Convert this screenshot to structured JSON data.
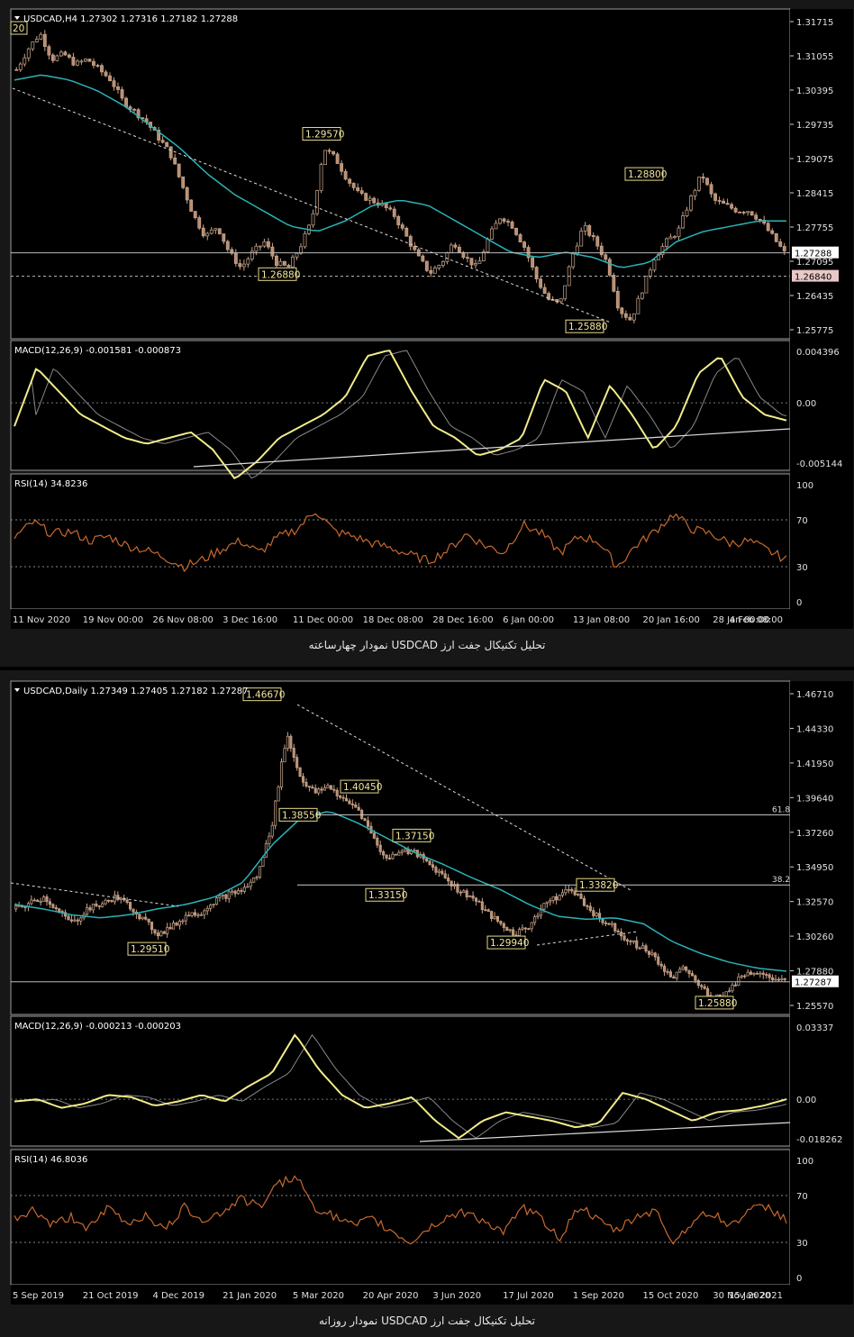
{
  "charts": [
    {
      "id": "h4",
      "caption": "تحلیل تکنیکال جفت ارز USDCAD نمودار چهارساعته",
      "price": {
        "header": "USDCAD,H4  1.27302 1.27316 1.27182 1.27288",
        "ticks": [
          "1.31715",
          "1.31055",
          "1.30395",
          "1.29735",
          "1.29075",
          "1.28415",
          "1.27755",
          "1.27095",
          "1.26435",
          "1.25775"
        ],
        "current_label": "1.27288",
        "level_label": "1.26840",
        "annotations": [
          "1.29570",
          "1.28800",
          "1.26880",
          "1.25880",
          "20"
        ]
      },
      "macd": {
        "header": "MACD(12,26,9) -0.001581 -0.000873",
        "ticks": [
          "0.004396",
          "0.00",
          "-0.005144"
        ]
      },
      "rsi": {
        "header": "RSI(14) 34.8236",
        "ticks": [
          "100",
          "70",
          "30",
          "0"
        ]
      },
      "x_labels": [
        "11 Nov 2020",
        "19 Nov 00:00",
        "26 Nov 08:00",
        "3 Dec 16:00",
        "11 Dec 00:00",
        "18 Dec 08:00",
        "28 Dec 16:00",
        "6 Jan 00:00",
        "13 Jan 08:00",
        "20 Jan 16:00",
        "28 Jan 00:00",
        "4 Feb 08:00"
      ]
    },
    {
      "id": "daily",
      "caption": "تحلیل تکنیکال جفت ارز USDCAD نمودار روزانه",
      "price": {
        "header": "USDCAD,Daily  1.27349 1.27405 1.27182 1.27287",
        "ticks": [
          "1.46710",
          "1.44330",
          "1.41950",
          "1.39640",
          "1.37260",
          "1.34950",
          "1.32570",
          "1.30260",
          "1.27880",
          "1.25570"
        ],
        "current_label": "1.27287",
        "annotations": [
          "1.46670",
          "1.38550",
          "1.40450",
          "1.37150",
          "1.33150",
          "1.29510",
          "1.29940",
          "1.33820",
          "1.25880"
        ],
        "fib_labels": [
          "61.8",
          "38.2"
        ]
      },
      "macd": {
        "header": "MACD(12,26,9) -0.000213 -0.000203",
        "ticks": [
          "0.03337",
          "0.00",
          "-0.018262"
        ]
      },
      "rsi": {
        "header": "RSI(14) 46.8036",
        "ticks": [
          "100",
          "70",
          "30",
          "0"
        ]
      },
      "x_labels": [
        "5 Sep 2019",
        "21 Oct 2019",
        "4 Dec 2019",
        "21 Jan 2020",
        "5 Mar 2020",
        "20 Apr 2020",
        "3 Jun 2020",
        "17 Jul 2020",
        "1 Sep 2020",
        "15 Oct 2020",
        "30 Nov 2020",
        "15 Jan 2021"
      ]
    }
  ],
  "chart_data": [
    {
      "type": "candlestick",
      "title": "USDCAD,H4",
      "ylim": [
        1.2578,
        1.3172
      ],
      "x_ticks": [
        "11 Nov 2020",
        "19 Nov 00:00",
        "26 Nov 08:00",
        "3 Dec 16:00",
        "11 Dec 00:00",
        "18 Dec 08:00",
        "28 Dec 16:00",
        "6 Jan 00:00",
        "13 Jan 08:00",
        "20 Jan 16:00",
        "28 Jan 00:00",
        "4 Feb 08:00"
      ],
      "close_path": [
        1.308,
        1.312,
        1.315,
        1.31,
        1.311,
        1.309,
        1.31,
        1.308,
        1.306,
        1.302,
        1.3,
        1.298,
        1.295,
        1.292,
        1.286,
        1.28,
        1.276,
        1.278,
        1.273,
        1.27,
        1.273,
        1.275,
        1.271,
        1.27,
        1.274,
        1.279,
        1.293,
        1.291,
        1.287,
        1.284,
        1.283,
        1.282,
        1.28,
        1.276,
        1.272,
        1.269,
        1.271,
        1.275,
        1.272,
        1.27,
        1.276,
        1.28,
        1.278,
        1.274,
        1.268,
        1.264,
        1.263,
        1.272,
        1.278,
        1.275,
        1.271,
        1.262,
        1.26,
        1.266,
        1.272,
        1.275,
        1.277,
        1.283,
        1.288,
        1.283,
        1.282,
        1.281,
        1.281,
        1.279,
        1.276,
        1.2729
      ],
      "close_path_note": "",
      "ma_path": [
        1.306,
        1.307,
        1.306,
        1.304,
        1.301,
        1.297,
        1.293,
        1.288,
        1.284,
        1.281,
        1.278,
        1.277,
        1.279,
        1.282,
        1.283,
        1.282,
        1.279,
        1.276,
        1.273,
        1.272,
        1.273,
        1.272,
        1.27,
        1.271,
        1.275,
        1.277,
        1.278,
        1.279,
        1.279
      ],
      "annotations": [
        {
          "label": "1.29570",
          "value": 1.2957
        },
        {
          "label": "1.28800",
          "value": 1.288
        },
        {
          "label": "1.26880",
          "value": 1.2688
        },
        {
          "label": "1.25880",
          "value": 1.2588
        }
      ],
      "horizontal_levels": [
        1.27288,
        1.2684
      ],
      "macd": [
        -0.002,
        0.003,
        0.001,
        -0.001,
        -0.002,
        -0.003,
        -0.0035,
        -0.003,
        -0.0025,
        -0.004,
        -0.0065,
        -0.005,
        -0.003,
        -0.002,
        -0.001,
        0.0005,
        0.004,
        0.0045,
        0.001,
        -0.002,
        -0.003,
        -0.0045,
        -0.004,
        -0.003,
        0.002,
        0.001,
        -0.003,
        0.0015,
        -0.001,
        -0.004,
        -0.002,
        0.0025,
        0.004,
        0.0005,
        -0.001,
        -0.0015
      ],
      "macd_ylim": [
        -0.005144,
        0.004396
      ],
      "rsi": [
        55,
        68,
        58,
        60,
        52,
        56,
        48,
        44,
        38,
        30,
        36,
        45,
        52,
        42,
        55,
        62,
        78,
        60,
        56,
        50,
        46,
        40,
        35,
        44,
        58,
        48,
        42,
        66,
        58,
        42,
        56,
        52,
        30,
        48,
        60,
        75,
        62,
        58,
        50,
        52,
        44,
        36
      ],
      "rsi_levels": [
        70,
        30
      ]
    },
    {
      "type": "candlestick",
      "title": "USDCAD,Daily",
      "ylim": [
        1.2557,
        1.4671
      ],
      "x_ticks": [
        "5 Sep 2019",
        "21 Oct 2019",
        "4 Dec 2019",
        "21 Jan 2020",
        "5 Mar 2020",
        "20 Apr 2020",
        "3 Jun 2020",
        "17 Jul 2020",
        "1 Sep 2020",
        "15 Oct 2020",
        "30 Nov 2020",
        "15 Jan 2021"
      ],
      "close_path": [
        1.322,
        1.326,
        1.33,
        1.32,
        1.312,
        1.322,
        1.325,
        1.33,
        1.324,
        1.314,
        1.305,
        1.31,
        1.318,
        1.32,
        1.328,
        1.332,
        1.335,
        1.345,
        1.38,
        1.44,
        1.41,
        1.4,
        1.405,
        1.395,
        1.39,
        1.372,
        1.355,
        1.362,
        1.36,
        1.352,
        1.345,
        1.335,
        1.33,
        1.32,
        1.312,
        1.305,
        1.31,
        1.325,
        1.33,
        1.336,
        1.325,
        1.315,
        1.31,
        1.3,
        1.296,
        1.288,
        1.275,
        1.282,
        1.27,
        1.262,
        1.266,
        1.278,
        1.28,
        1.275,
        1.2729
      ],
      "ma_path": [
        1.325,
        1.322,
        1.318,
        1.316,
        1.318,
        1.322,
        1.325,
        1.33,
        1.34,
        1.365,
        1.383,
        1.388,
        1.38,
        1.37,
        1.36,
        1.352,
        1.343,
        1.335,
        1.325,
        1.317,
        1.315,
        1.316,
        1.312,
        1.3,
        1.292,
        1.286,
        1.282,
        1.28
      ],
      "annotations": [
        {
          "label": "1.46670",
          "value": 1.4667
        },
        {
          "label": "1.38550",
          "value": 1.3855
        },
        {
          "label": "1.40450",
          "value": 1.4045
        },
        {
          "label": "1.37150",
          "value": 1.3715
        },
        {
          "label": "1.33150",
          "value": 1.3315
        },
        {
          "label": "1.29510",
          "value": 1.2951
        },
        {
          "label": "1.29940",
          "value": 1.2994
        },
        {
          "label": "1.33820",
          "value": 1.3382
        },
        {
          "label": "1.25880",
          "value": 1.2588
        }
      ],
      "fib_levels": [
        {
          "label": "61.8",
          "value": 1.3855
        },
        {
          "label": "38.2",
          "value": 1.3382
        }
      ],
      "horizontal_levels": [
        1.27287
      ],
      "macd": [
        -0.001,
        0.0,
        -0.004,
        -0.002,
        0.002,
        0.001,
        -0.003,
        -0.001,
        0.002,
        -0.001,
        0.006,
        0.012,
        0.03,
        0.014,
        0.002,
        -0.004,
        -0.002,
        0.001,
        -0.01,
        -0.018,
        -0.01,
        -0.006,
        -0.008,
        -0.01,
        -0.013,
        -0.011,
        0.003,
        0.0,
        -0.005,
        -0.01,
        -0.006,
        -0.005,
        -0.003,
        0.0
      ],
      "macd_ylim": [
        -0.018262,
        0.03337
      ],
      "rsi": [
        50,
        58,
        45,
        52,
        42,
        60,
        46,
        54,
        40,
        60,
        50,
        55,
        68,
        60,
        80,
        85,
        60,
        52,
        44,
        50,
        40,
        30,
        42,
        52,
        56,
        48,
        38,
        60,
        50,
        34,
        62,
        48,
        40,
        52,
        58,
        30,
        48,
        56,
        44,
        58,
        60,
        50
      ],
      "rsi_levels": [
        70,
        30
      ]
    }
  ]
}
